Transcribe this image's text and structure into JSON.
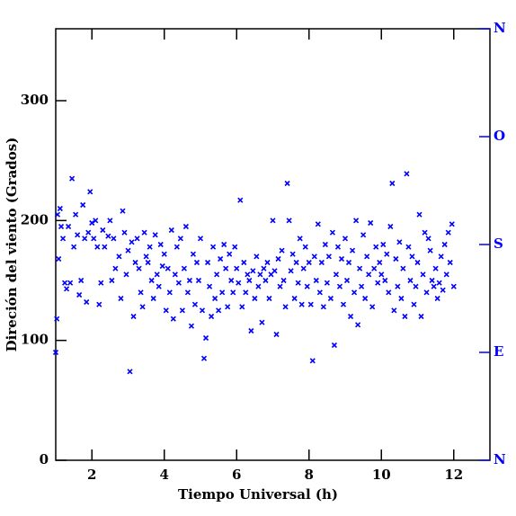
{
  "chart_data": {
    "type": "scatter",
    "xlabel": "Tiempo Universal (h)",
    "ylabel": "Direción del viento (Grados)",
    "color": "#0000ff",
    "xlim": [
      1,
      13
    ],
    "xticks": [
      2,
      4,
      6,
      8,
      10,
      12
    ],
    "ylim": [
      0,
      360
    ],
    "yticks": [
      0,
      100,
      200,
      300
    ],
    "y2lim": [
      0,
      360
    ],
    "y2ticks": [
      {
        "value": 0,
        "label": "N"
      },
      {
        "value": 90,
        "label": "E"
      },
      {
        "value": 180,
        "label": "S"
      },
      {
        "value": 270,
        "label": "O"
      },
      {
        "value": 360,
        "label": "N"
      }
    ],
    "y2color": "#0000ff",
    "x": [
      1.0,
      1.03,
      1.05,
      1.08,
      1.12,
      1.15,
      1.2,
      1.25,
      1.3,
      1.35,
      1.4,
      1.45,
      1.5,
      1.55,
      1.6,
      1.65,
      1.7,
      1.75,
      1.8,
      1.85,
      1.9,
      1.95,
      2.0,
      2.05,
      2.1,
      2.15,
      2.2,
      2.25,
      2.3,
      2.35,
      2.45,
      2.5,
      2.55,
      2.6,
      2.65,
      2.75,
      2.8,
      2.85,
      2.9,
      2.95,
      3.0,
      3.05,
      3.1,
      3.15,
      3.2,
      3.25,
      3.3,
      3.35,
      3.4,
      3.45,
      3.5,
      3.55,
      3.6,
      3.65,
      3.7,
      3.75,
      3.8,
      3.85,
      3.9,
      3.95,
      4.0,
      4.05,
      4.1,
      4.15,
      4.2,
      4.25,
      4.3,
      4.35,
      4.4,
      4.45,
      4.5,
      4.55,
      4.6,
      4.65,
      4.7,
      4.75,
      4.8,
      4.85,
      4.9,
      4.95,
      5.0,
      5.05,
      5.1,
      5.15,
      5.2,
      5.25,
      5.3,
      5.35,
      5.4,
      5.45,
      5.5,
      5.55,
      5.6,
      5.65,
      5.7,
      5.75,
      5.8,
      5.85,
      5.9,
      5.95,
      6.0,
      6.05,
      6.1,
      6.15,
      6.2,
      6.25,
      6.3,
      6.35,
      6.4,
      6.45,
      6.5,
      6.55,
      6.6,
      6.65,
      6.7,
      6.75,
      6.8,
      6.85,
      6.9,
      6.95,
      7.0,
      7.05,
      7.1,
      7.15,
      7.2,
      7.25,
      7.3,
      7.35,
      7.4,
      7.45,
      7.5,
      7.55,
      7.6,
      7.65,
      7.7,
      7.75,
      7.8,
      7.85,
      7.9,
      7.95,
      8.0,
      8.05,
      8.1,
      8.15,
      8.2,
      8.25,
      8.3,
      8.35,
      8.4,
      8.45,
      8.5,
      8.55,
      8.6,
      8.65,
      8.7,
      8.75,
      8.8,
      8.85,
      8.9,
      8.95,
      9.0,
      9.05,
      9.1,
      9.15,
      9.2,
      9.25,
      9.3,
      9.35,
      9.4,
      9.45,
      9.5,
      9.55,
      9.6,
      9.65,
      9.7,
      9.75,
      9.8,
      9.85,
      9.9,
      9.95,
      10.0,
      10.05,
      10.1,
      10.15,
      10.2,
      10.25,
      10.3,
      10.35,
      10.4,
      10.45,
      10.5,
      10.55,
      10.6,
      10.65,
      10.7,
      10.75,
      10.8,
      10.85,
      10.9,
      10.95,
      11.0,
      11.05,
      11.1,
      11.15,
      11.2,
      11.25,
      11.3,
      11.35,
      11.4,
      11.45,
      11.5,
      11.55,
      11.6,
      11.65,
      11.7,
      11.75,
      11.8,
      11.85,
      11.9,
      11.95,
      12.0
    ],
    "values": [
      90,
      118,
      205,
      168,
      210,
      195,
      185,
      148,
      143,
      195,
      148,
      235,
      178,
      205,
      188,
      138,
      150,
      213,
      185,
      132,
      190,
      224,
      198,
      185,
      200,
      178,
      130,
      148,
      192,
      178,
      187,
      200,
      150,
      185,
      160,
      170,
      135,
      208,
      190,
      155,
      175,
      74,
      182,
      120,
      165,
      185,
      160,
      140,
      128,
      190,
      170,
      165,
      178,
      150,
      135,
      188,
      155,
      145,
      180,
      162,
      172,
      125,
      160,
      140,
      192,
      118,
      155,
      178,
      148,
      185,
      125,
      160,
      195,
      140,
      150,
      112,
      172,
      130,
      165,
      150,
      185,
      125,
      85,
      102,
      165,
      145,
      120,
      178,
      135,
      155,
      125,
      168,
      140,
      180,
      160,
      128,
      172,
      150,
      140,
      178,
      160,
      148,
      217,
      128,
      165,
      140,
      155,
      150,
      108,
      158,
      135,
      170,
      145,
      155,
      115,
      160,
      150,
      165,
      135,
      155,
      200,
      158,
      105,
      168,
      145,
      175,
      150,
      128,
      231,
      200,
      158,
      172,
      135,
      165,
      148,
      185,
      130,
      160,
      178,
      145,
      165,
      130,
      83,
      170,
      150,
      197,
      140,
      165,
      128,
      180,
      148,
      170,
      135,
      190,
      96,
      155,
      178,
      145,
      168,
      130,
      185,
      150,
      165,
      120,
      175,
      140,
      200,
      113,
      160,
      145,
      188,
      135,
      170,
      155,
      198,
      128,
      160,
      178,
      148,
      165,
      155,
      180,
      150,
      172,
      140,
      195,
      231,
      125,
      168,
      145,
      182,
      135,
      160,
      120,
      239,
      178,
      150,
      170,
      130,
      145,
      165,
      205,
      120,
      155,
      190,
      140,
      185,
      175,
      150,
      145,
      160,
      135,
      148,
      170,
      142,
      180,
      155,
      190,
      165,
      197,
      145
    ]
  }
}
